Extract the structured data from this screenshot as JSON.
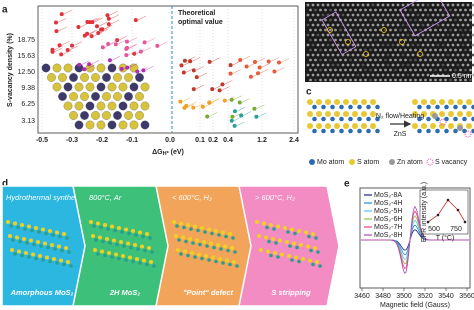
{
  "panel_labels": [
    "a",
    "b",
    "c",
    "d",
    "e"
  ],
  "panel_a": {
    "y_label": "S-vacancy density (%)",
    "x_label": [
      "ΔG",
      "H*",
      " (eV)"
    ],
    "yticks": [
      "18.75",
      "15.63",
      "12.50",
      "9.38",
      "6.25",
      "3.13"
    ],
    "xticks": [
      "-0.5",
      "-0.3",
      "-0.2",
      "-0.1",
      "0.0",
      "0.1",
      "0.2",
      "0.4",
      "1.2",
      "2.4"
    ],
    "annotation": [
      "Theoretical",
      "optimal value"
    ]
  },
  "panel_b": {
    "scale_bar": "0.5 nm"
  },
  "panel_c": {
    "legend": [
      "Mo atom",
      "S atom",
      "Zn atom",
      "S vacancy"
    ],
    "process": "N₂ flow/Heating",
    "product": "ZnS"
  },
  "panel_d": {
    "steps": [
      {
        "condition": "Hydrothermal synthesis",
        "product": "Amorphous MoS₂"
      },
      {
        "condition": "800°C, Ar",
        "product": "2H MoS₂"
      },
      {
        "condition": "< 600°C, H₂",
        "product": "\"Point\" defect"
      },
      {
        "condition": "> 600°C, H₂",
        "product": "S stripping"
      }
    ]
  },
  "panel_e": {
    "legend": [
      "MoS₂-8A",
      "MoS₂-4H",
      "MoS₂-5H",
      "MoS₂-6H",
      "MoS₂-7H",
      "MoS₂-8H"
    ],
    "xticks": [
      "3460",
      "3480",
      "3500",
      "3520",
      "3540",
      "3560"
    ],
    "x_label": "Magnetic field (Gauss)",
    "inset_y_label": "EPR intensity (a.u.)",
    "inset_x_label": "T (°C)",
    "inset_xticks": [
      "500",
      "750"
    ]
  }
}
